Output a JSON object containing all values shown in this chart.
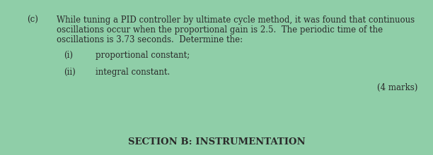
{
  "background_color": "#8fcea8",
  "label_c": "(c)",
  "body_text_line1": "While tuning a PID controller by ultimate cycle method, it was found that continuous",
  "body_text_line2": "oscillations occur when the proportional gain is 2.5.  The periodic time of the",
  "body_text_line3": "oscillations is 3.73 seconds.  Determine the:",
  "item_i_label": "(i)",
  "item_i_text": "proportional constant;",
  "item_ii_label": "(ii)",
  "item_ii_text": "integral constant.",
  "marks_text": "(4 marks)",
  "section_text": "SECTION B: INSTRUMENTATION",
  "font_family": "serif",
  "body_fontsize": 8.5,
  "section_fontsize": 9.5,
  "text_color": "#2a2a2a"
}
